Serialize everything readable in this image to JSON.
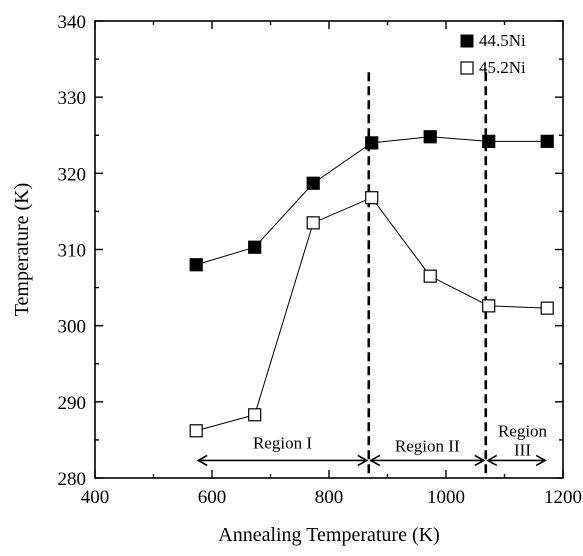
{
  "chart_data": {
    "type": "line",
    "title": "",
    "xlabel": "Annealing Temperature (K)",
    "ylabel": "Temperature (K)",
    "xlim": [
      400,
      1200
    ],
    "ylim": [
      280,
      340
    ],
    "xticks": [
      400,
      600,
      800,
      1000,
      1200
    ],
    "yticks": [
      280,
      290,
      300,
      310,
      320,
      330,
      340
    ],
    "legend_position": "top-right",
    "grid": false,
    "series": [
      {
        "name": "44.5Ni",
        "marker": "filled-square",
        "x": [
          573,
          673,
          773,
          873,
          973,
          1073,
          1173
        ],
        "y": [
          308.0,
          310.3,
          318.7,
          324.0,
          324.8,
          324.2,
          324.2
        ]
      },
      {
        "name": "45.2Ni",
        "marker": "open-square",
        "x": [
          573,
          673,
          773,
          873,
          973,
          1073,
          1173
        ],
        "y": [
          286.2,
          288.3,
          313.5,
          316.8,
          306.5,
          302.6,
          302.3
        ]
      }
    ],
    "vlines": [
      {
        "x": 868,
        "style": "dashed"
      },
      {
        "x": 1068,
        "style": "dashed"
      }
    ],
    "regions": [
      {
        "label": "Region I",
        "x_start": 573,
        "x_end": 868
      },
      {
        "label": "Region II",
        "x_start": 868,
        "x_end": 1068
      },
      {
        "label_line1": "Region",
        "label_line2": "III",
        "x_start": 1068,
        "x_end": 1173
      }
    ],
    "region_arrow_y": 282.3
  }
}
